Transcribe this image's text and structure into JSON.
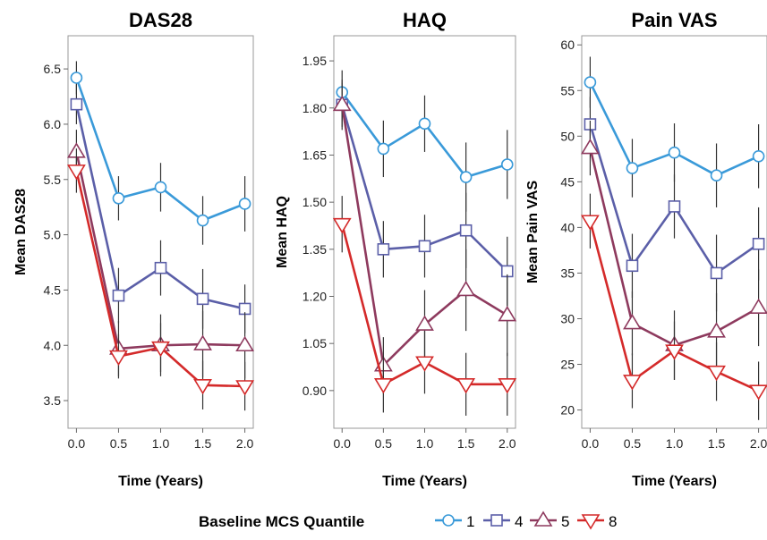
{
  "legend": {
    "title": "Baseline MCS Quantile",
    "items": [
      {
        "label": "1",
        "color": "#3A9AD9",
        "marker": "circle"
      },
      {
        "label": "4",
        "color": "#5B5FA8",
        "marker": "square"
      },
      {
        "label": "5",
        "color": "#8E3A5E",
        "marker": "triangle-up"
      },
      {
        "label": "8",
        "color": "#D42A2A",
        "marker": "triangle-down"
      }
    ]
  },
  "chart_data": [
    {
      "type": "line",
      "title": "DAS28",
      "xlabel": "Time (Years)",
      "ylabel": "Mean DAS28",
      "x": [
        0.0,
        0.5,
        1.0,
        1.5,
        2.0
      ],
      "x_ticks": [
        "0.0",
        "0.5",
        "1.0",
        "1.5",
        "2.0"
      ],
      "y_ticks": [
        "3.5",
        "4.0",
        "4.5",
        "5.0",
        "5.5",
        "6.0",
        "6.5"
      ],
      "xlim": [
        -0.1,
        2.1
      ],
      "ylim": [
        3.25,
        6.8
      ],
      "series": [
        {
          "name": "1",
          "values": [
            6.42,
            5.33,
            5.43,
            5.13,
            5.28
          ],
          "err": [
            0.15,
            0.2,
            0.22,
            0.22,
            0.25
          ]
        },
        {
          "name": "4",
          "values": [
            6.18,
            4.45,
            4.7,
            4.42,
            4.33
          ],
          "err": [
            0.18,
            0.25,
            0.25,
            0.27,
            0.22
          ]
        },
        {
          "name": "5",
          "values": [
            5.75,
            3.97,
            4.0,
            4.01,
            4.0
          ],
          "err": [
            0.2,
            0.25,
            0.28,
            0.3,
            0.3
          ]
        },
        {
          "name": "8",
          "values": [
            5.58,
            3.9,
            3.98,
            3.64,
            3.63
          ],
          "err": [
            0.2,
            0.2,
            0.22,
            0.22,
            0.22
          ]
        }
      ]
    },
    {
      "type": "line",
      "title": "HAQ",
      "xlabel": "Time (Years)",
      "ylabel": "Mean HAQ",
      "x": [
        0.0,
        0.5,
        1.0,
        1.5,
        2.0
      ],
      "x_ticks": [
        "0.0",
        "0.5",
        "1.0",
        "1.5",
        "2.0"
      ],
      "y_ticks": [
        "0.90",
        "1.05",
        "1.20",
        "1.35",
        "1.50",
        "1.65",
        "1.80",
        "1.95"
      ],
      "xlim": [
        -0.1,
        2.1
      ],
      "ylim": [
        0.78,
        2.03
      ],
      "series": [
        {
          "name": "1",
          "values": [
            1.85,
            1.67,
            1.75,
            1.58,
            1.62
          ],
          "err": [
            0.07,
            0.09,
            0.09,
            0.11,
            0.11
          ]
        },
        {
          "name": "4",
          "values": [
            1.81,
            1.35,
            1.36,
            1.41,
            1.28
          ],
          "err": [
            0.07,
            0.09,
            0.1,
            0.12,
            0.11
          ]
        },
        {
          "name": "5",
          "values": [
            1.81,
            0.98,
            1.11,
            1.22,
            1.14
          ],
          "err": [
            0.08,
            0.09,
            0.11,
            0.13,
            0.13
          ]
        },
        {
          "name": "8",
          "values": [
            1.43,
            0.92,
            0.99,
            0.92,
            0.92
          ],
          "err": [
            0.09,
            0.09,
            0.1,
            0.1,
            0.1
          ]
        }
      ]
    },
    {
      "type": "line",
      "title": "Pain VAS",
      "xlabel": "Time (Years)",
      "ylabel": "Mean Pain VAS",
      "x": [
        0.0,
        0.5,
        1.0,
        1.5,
        2.0
      ],
      "x_ticks": [
        "0.0",
        "0.5",
        "1.0",
        "1.5",
        "2.0"
      ],
      "y_ticks": [
        "20",
        "25",
        "30",
        "35",
        "40",
        "45",
        "50",
        "55",
        "60"
      ],
      "xlim": [
        -0.1,
        2.1
      ],
      "ylim": [
        18,
        61
      ],
      "series": [
        {
          "name": "1",
          "values": [
            55.9,
            46.5,
            48.2,
            45.7,
            47.8
          ],
          "err": [
            2.8,
            3.2,
            3.2,
            3.5,
            3.5
          ]
        },
        {
          "name": "4",
          "values": [
            51.3,
            35.8,
            42.3,
            35.0,
            38.2
          ],
          "err": [
            3.0,
            3.5,
            3.5,
            4.2,
            4.0
          ]
        },
        {
          "name": "5",
          "values": [
            48.7,
            29.5,
            27.1,
            28.6,
            31.2
          ],
          "err": [
            3.0,
            3.5,
            3.8,
            4.2,
            4.2
          ]
        },
        {
          "name": "8",
          "values": [
            40.7,
            23.2,
            26.5,
            24.2,
            22.1
          ],
          "err": [
            3.0,
            3.0,
            3.2,
            3.2,
            3.2
          ]
        }
      ]
    }
  ]
}
